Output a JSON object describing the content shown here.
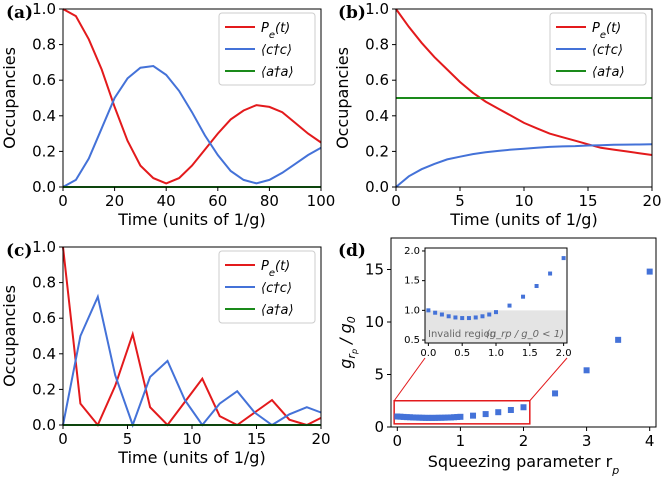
{
  "chart_data": [
    {
      "panel_label": "(a)",
      "type": "line",
      "xlabel": "Time (units of 1/g)",
      "ylabel": "Occupancies",
      "xlim": [
        0,
        100
      ],
      "ylim": [
        0,
        1
      ],
      "xticks": [
        "0",
        "20",
        "40",
        "60",
        "80",
        "100"
      ],
      "yticks": [
        "0.0",
        "0.2",
        "0.4",
        "0.6",
        "0.8",
        "1.0"
      ],
      "legend": "top-right",
      "series": [
        {
          "name": "P_e(t)",
          "label": "Pe(t)",
          "color": "#e31a1c",
          "x": [
            0,
            5,
            10,
            15,
            20,
            25,
            30,
            35,
            40,
            45,
            50,
            55,
            60,
            65,
            70,
            75,
            80,
            85,
            90,
            95,
            100
          ],
          "y": [
            1.0,
            0.96,
            0.83,
            0.66,
            0.45,
            0.26,
            0.12,
            0.05,
            0.02,
            0.05,
            0.12,
            0.21,
            0.3,
            0.38,
            0.43,
            0.46,
            0.45,
            0.42,
            0.36,
            0.3,
            0.25
          ]
        },
        {
          "name": "<c†c>",
          "label": "⟨c†c⟩",
          "color": "#4472d8",
          "x": [
            0,
            5,
            10,
            15,
            20,
            25,
            30,
            35,
            40,
            45,
            50,
            55,
            60,
            65,
            70,
            75,
            80,
            85,
            90,
            95,
            100
          ],
          "y": [
            0.0,
            0.04,
            0.16,
            0.33,
            0.5,
            0.61,
            0.67,
            0.68,
            0.63,
            0.54,
            0.42,
            0.29,
            0.18,
            0.09,
            0.04,
            0.02,
            0.04,
            0.08,
            0.13,
            0.18,
            0.22
          ]
        },
        {
          "name": "<a†a>",
          "label": "⟨a†a⟩",
          "color": "#1a8a1a",
          "x": [
            0,
            100
          ],
          "y": [
            0.0,
            0.0
          ]
        }
      ]
    },
    {
      "panel_label": "(b)",
      "type": "line",
      "xlabel": "Time (units of 1/g)",
      "ylabel": "Occupancies",
      "xlim": [
        0,
        20
      ],
      "ylim": [
        0,
        1
      ],
      "xticks": [
        "0",
        "5",
        "10",
        "15",
        "20"
      ],
      "yticks": [
        "0.0",
        "0.2",
        "0.4",
        "0.6",
        "0.8",
        "1.0"
      ],
      "legend": "top-right",
      "series": [
        {
          "name": "P_e(t)",
          "label": "Pe(t)",
          "color": "#e31a1c",
          "x": [
            0,
            1,
            2,
            3,
            4,
            5,
            6,
            7,
            8,
            9,
            10,
            11,
            12,
            13,
            14,
            15,
            16,
            17,
            18,
            19,
            20
          ],
          "y": [
            1.0,
            0.9,
            0.81,
            0.73,
            0.66,
            0.59,
            0.53,
            0.48,
            0.44,
            0.4,
            0.36,
            0.33,
            0.3,
            0.28,
            0.26,
            0.24,
            0.22,
            0.21,
            0.2,
            0.19,
            0.18
          ]
        },
        {
          "name": "<c†c>",
          "label": "⟨c†c⟩",
          "color": "#4472d8",
          "x": [
            0,
            1,
            2,
            3,
            4,
            5,
            6,
            7,
            8,
            9,
            10,
            11,
            12,
            13,
            14,
            15,
            16,
            17,
            18,
            19,
            20
          ],
          "y": [
            0.0,
            0.06,
            0.1,
            0.13,
            0.155,
            0.17,
            0.185,
            0.195,
            0.203,
            0.21,
            0.215,
            0.22,
            0.225,
            0.228,
            0.23,
            0.233,
            0.235,
            0.237,
            0.238,
            0.239,
            0.24
          ]
        },
        {
          "name": "<a†a>",
          "label": "⟨a†a⟩",
          "color": "#1a8a1a",
          "x": [
            0,
            20
          ],
          "y": [
            0.5,
            0.5
          ]
        }
      ]
    },
    {
      "panel_label": "(c)",
      "type": "line",
      "xlabel": "Time (units of 1/g)",
      "ylabel": "Occupancies",
      "xlim": [
        0,
        20
      ],
      "ylim": [
        0,
        1
      ],
      "xticks": [
        "0",
        "5",
        "10",
        "15",
        "20"
      ],
      "yticks": [
        "0.0",
        "0.2",
        "0.4",
        "0.6",
        "0.8",
        "1.0"
      ],
      "legend": "top-right",
      "series": [
        {
          "name": "P_e(t)",
          "label": "Pe(t)",
          "color": "#e31a1c",
          "x": [
            0,
            1.35,
            2.7,
            4.05,
            5.4,
            6.75,
            8.1,
            9.45,
            10.8,
            12.15,
            13.5,
            14.85,
            16.2,
            17.55,
            18.9,
            20
          ],
          "y": [
            1.0,
            0.12,
            0.0,
            0.22,
            0.51,
            0.1,
            0.0,
            0.13,
            0.26,
            0.05,
            0.0,
            0.07,
            0.14,
            0.03,
            0.0,
            0.04
          ]
        },
        {
          "name": "<c†c>",
          "label": "⟨c†c⟩",
          "color": "#4472d8",
          "x": [
            0,
            1.35,
            2.7,
            4.05,
            5.4,
            6.75,
            8.1,
            9.45,
            10.8,
            12.15,
            13.5,
            14.85,
            16.2,
            17.55,
            18.9,
            20
          ],
          "y": [
            0.0,
            0.5,
            0.72,
            0.28,
            0.0,
            0.27,
            0.36,
            0.14,
            0.0,
            0.12,
            0.19,
            0.07,
            0.0,
            0.06,
            0.1,
            0.07
          ]
        },
        {
          "name": "<a†a>",
          "label": "⟨a†a⟩",
          "color": "#1a8a1a",
          "x": [
            0,
            20
          ],
          "y": [
            0.0,
            0.0
          ]
        }
      ]
    },
    {
      "panel_label": "(d)",
      "type": "scatter",
      "xlabel": "Squeezing parameter r_p",
      "xlabel_text": "Squeezing parameter r",
      "xlabel_sub": "p",
      "ylabel": "g_rp / g_0",
      "xlim": [
        -0.1,
        4.1
      ],
      "ylim": [
        0,
        18
      ],
      "xticks": [
        "0",
        "1",
        "2",
        "3",
        "4"
      ],
      "yticks": [
        "0",
        "5",
        "10",
        "15"
      ],
      "color": "#4472d8",
      "x": [
        0.0,
        0.05,
        0.1,
        0.15,
        0.2,
        0.25,
        0.3,
        0.35,
        0.4,
        0.45,
        0.5,
        0.55,
        0.6,
        0.65,
        0.7,
        0.75,
        0.8,
        0.85,
        0.9,
        0.95,
        1.0,
        1.2,
        1.4,
        1.6,
        1.8,
        2.0,
        2.5,
        3.0,
        3.5,
        4.0
      ],
      "y": [
        1.0,
        0.98,
        0.96,
        0.94,
        0.93,
        0.91,
        0.9,
        0.89,
        0.88,
        0.87,
        0.87,
        0.87,
        0.87,
        0.88,
        0.88,
        0.89,
        0.9,
        0.91,
        0.93,
        0.95,
        0.97,
        1.08,
        1.23,
        1.41,
        1.62,
        1.88,
        3.2,
        5.4,
        8.3,
        14.8
      ],
      "inset": {
        "xlim": [
          -0.05,
          2.05
        ],
        "ylim": [
          0.45,
          2.05
        ],
        "xticks": [
          "0.0",
          "0.5",
          "1.0",
          "1.5",
          "2.0"
        ],
        "yticks": [
          "0.5",
          "1.0",
          "1.5",
          "2.0"
        ],
        "invalid_region_label": "Invalid region",
        "invalid_condition": "(g_rp / g_0 < 1)",
        "x": [
          0.0,
          0.1,
          0.2,
          0.3,
          0.4,
          0.5,
          0.6,
          0.7,
          0.8,
          0.9,
          1.0,
          1.2,
          1.4,
          1.6,
          1.8,
          2.0
        ],
        "y": [
          1.0,
          0.96,
          0.93,
          0.9,
          0.88,
          0.87,
          0.87,
          0.88,
          0.9,
          0.93,
          0.97,
          1.08,
          1.23,
          1.41,
          1.62,
          1.88
        ]
      }
    }
  ]
}
